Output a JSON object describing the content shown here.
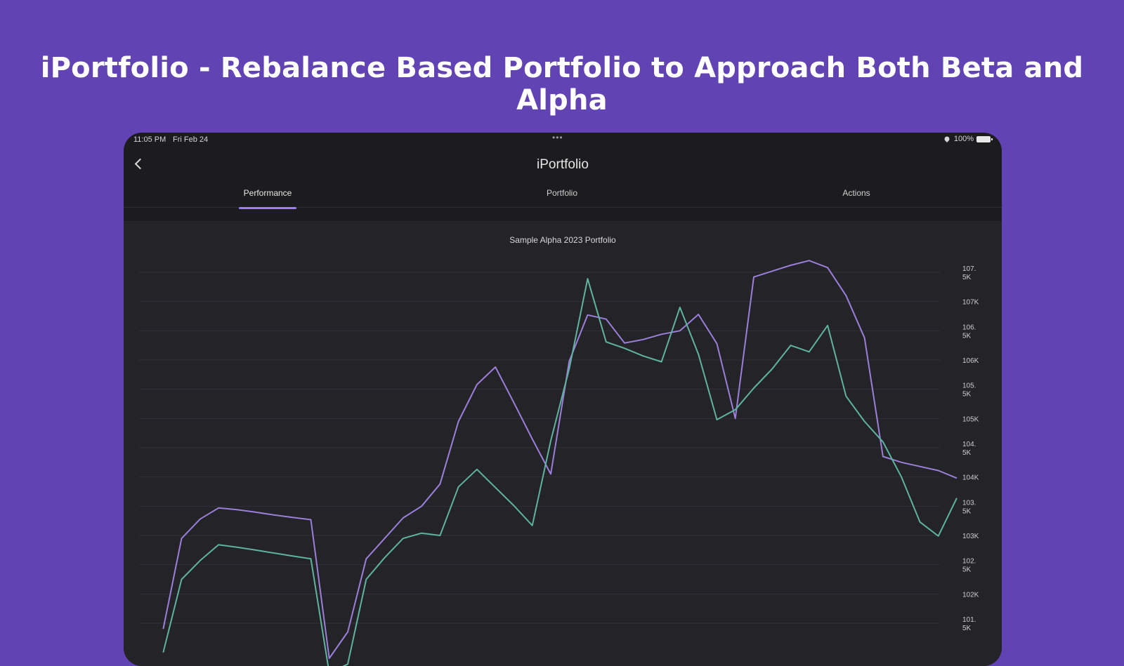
{
  "promo": {
    "title": "iPortfolio - Rebalance Based Portfolio to Approach Both Beta and Alpha"
  },
  "status_bar": {
    "time": "11:05 PM",
    "date": "Fri Feb 24",
    "dots": "•••",
    "battery": "100%"
  },
  "nav": {
    "title": "iPortfolio"
  },
  "tabs": [
    {
      "label": "Performance",
      "active": true
    },
    {
      "label": "Portfolio",
      "active": false
    },
    {
      "label": "Actions",
      "active": false
    }
  ],
  "colors": {
    "background": "#6143b4",
    "device": "#1c1c1f",
    "chart_bg": "#232328",
    "accent": "#9c7ff0",
    "series_purple": "#9b7fd9",
    "series_teal": "#5fb3a0"
  },
  "chart_data": {
    "type": "line",
    "title": "Sample Alpha 2023 Portfolio",
    "xlabel": "",
    "ylabel": "",
    "y_axis_position": "right",
    "grid": true,
    "legend": "none",
    "y_ticks": [
      "107.5K",
      "107K",
      "106.5K",
      "106K",
      "105.5K",
      "105K",
      "104.5K",
      "104K",
      "103.5K",
      "103K",
      "102.5K",
      "102K",
      "101.5K"
    ],
    "y_tick_values": [
      107500,
      107000,
      106500,
      106000,
      105500,
      105000,
      104500,
      104000,
      103500,
      103000,
      102500,
      102000,
      101500
    ],
    "ylim": [
      101300,
      107800
    ],
    "x_count": 45,
    "series": [
      {
        "color": "#9b7fd9",
        "values": [
          null,
          101400,
          102950,
          103280,
          103470,
          103440,
          103400,
          103350,
          103310,
          103270,
          100900,
          101350,
          102600,
          102950,
          103300,
          103500,
          103880,
          104950,
          105580,
          105880,
          105270,
          104650,
          104050,
          105980,
          106770,
          106700,
          106290,
          106350,
          106440,
          106500,
          106780,
          106280,
          105000,
          107420,
          107520,
          107620,
          107700,
          107580,
          107100,
          106380,
          104350,
          104250,
          104180,
          104110,
          103980
        ]
      },
      {
        "color": "#5fb3a0",
        "values": [
          null,
          101000,
          102250,
          102570,
          102840,
          102800,
          102750,
          102700,
          102650,
          102600,
          100650,
          100800,
          102250,
          102620,
          102950,
          103040,
          103000,
          103830,
          104130,
          103820,
          103510,
          103170,
          104620,
          105850,
          107390,
          106310,
          106200,
          106070,
          105970,
          106900,
          106100,
          104980,
          105150,
          105520,
          105850,
          106250,
          106140,
          106590,
          105380,
          104950,
          104600,
          104000,
          103230,
          102990,
          103640
        ]
      }
    ]
  }
}
